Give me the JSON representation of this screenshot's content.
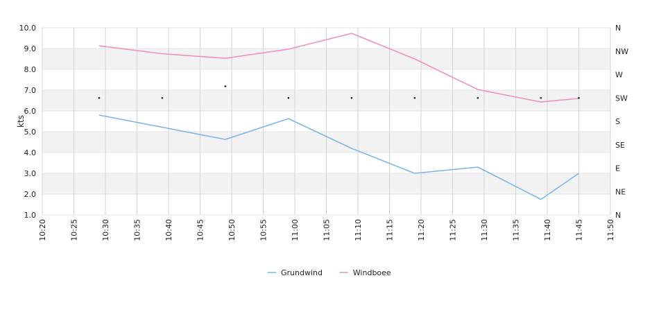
{
  "chart_data": {
    "type": "line",
    "title": "",
    "ylabel": "kts",
    "xlabel": "",
    "ylim": [
      1.0,
      10.0
    ],
    "y_ticks": [
      "1.0",
      "2.0",
      "3.0",
      "4.0",
      "5.0",
      "6.0",
      "7.0",
      "8.0",
      "9.0",
      "10.0"
    ],
    "x_ticks": [
      "10:20",
      "10:25",
      "10:30",
      "10:35",
      "10:40",
      "10:45",
      "10:50",
      "10:55",
      "11:00",
      "11:05",
      "11:10",
      "11:15",
      "11:20",
      "11:25",
      "11:30",
      "11:35",
      "11:40",
      "11:45",
      "11:50"
    ],
    "x_range": [
      "10:20",
      "11:50"
    ],
    "direction_axis": {
      "labels": [
        "N",
        "NE",
        "E",
        "SE",
        "S",
        "SW",
        "W",
        "NW",
        "N"
      ],
      "range_degrees": [
        0,
        360
      ]
    },
    "grid": true,
    "legend_position": "bottom",
    "series": [
      {
        "name": "Grundwind",
        "color": "#7cb5ec",
        "points": [
          [
            "10:29",
            5.8
          ],
          [
            "10:49",
            4.63
          ],
          [
            "10:59",
            5.63
          ],
          [
            "11:09",
            4.2
          ],
          [
            "11:19",
            3.0
          ],
          [
            "11:29",
            3.3
          ],
          [
            "11:39",
            1.75
          ],
          [
            "11:45",
            3.0
          ]
        ]
      },
      {
        "name": "Windboee",
        "color": "#f28fbf",
        "points": [
          [
            "10:29",
            9.13
          ],
          [
            "10:39",
            8.75
          ],
          [
            "10:49",
            8.53
          ],
          [
            "10:59",
            8.97
          ],
          [
            "11:09",
            9.73
          ],
          [
            "11:19",
            8.5
          ],
          [
            "11:29",
            7.03
          ],
          [
            "11:39",
            6.43
          ],
          [
            "11:45",
            6.6
          ]
        ]
      }
    ],
    "direction_points": [
      [
        "10:29",
        225
      ],
      [
        "10:39",
        225
      ],
      [
        "10:49",
        247.5
      ],
      [
        "10:59",
        225
      ],
      [
        "11:09",
        225
      ],
      [
        "11:19",
        225
      ],
      [
        "11:29",
        225
      ],
      [
        "11:39",
        225
      ],
      [
        "11:45",
        225
      ]
    ]
  }
}
